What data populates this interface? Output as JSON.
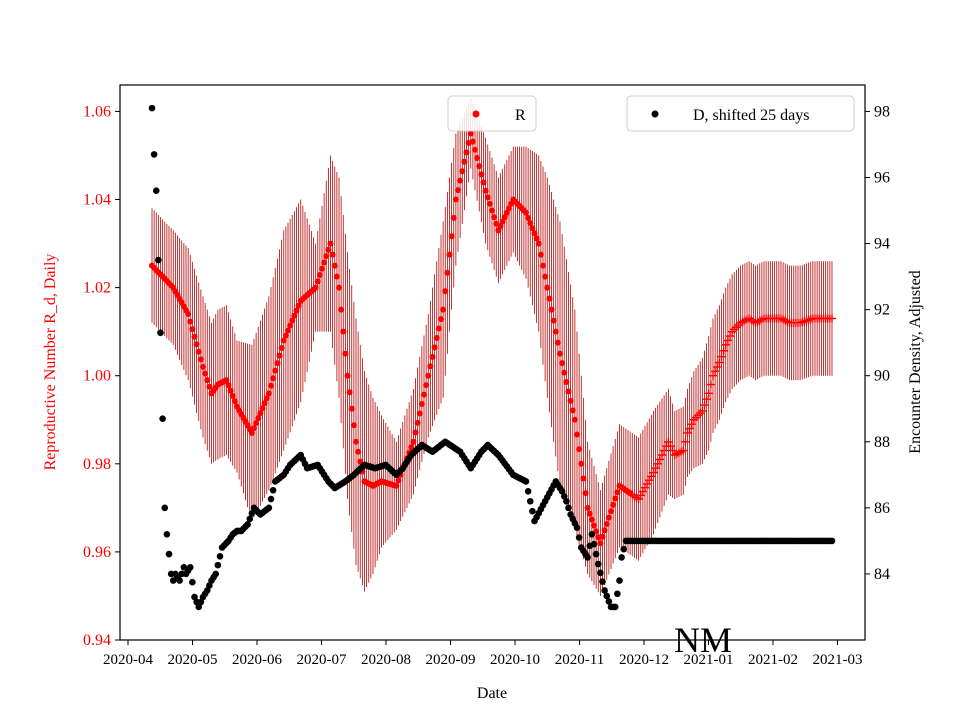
{
  "chart_data": {
    "type": "scatter",
    "xlabel": "Date",
    "ylabel_left": "Reproductive Number R_d, Daily",
    "ylabel_right": "Encounter Density, Adjusted",
    "annotation": "NM",
    "x_tick_labels": [
      "2020-04",
      "2020-05",
      "2020-06",
      "2020-07",
      "2020-08",
      "2020-09",
      "2020-10",
      "2020-11",
      "2020-12",
      "2021-01",
      "2021-02",
      "2021-03"
    ],
    "left_ylim": [
      0.94,
      1.066
    ],
    "left_ticks": [
      "0.94",
      "0.96",
      "0.98",
      "1.00",
      "1.02",
      "1.04",
      "1.06"
    ],
    "right_ylim": [
      82.0,
      98.8
    ],
    "right_ticks": [
      "84",
      "86",
      "88",
      "90",
      "92",
      "94",
      "96",
      "98"
    ],
    "colors": {
      "r_series": "#ff0000",
      "r_errorbar": "#b30000",
      "d_series": "#000000"
    },
    "legend": {
      "left": {
        "label": "R",
        "placement": "upper-center"
      },
      "right": {
        "label": "D, shifted 25 days",
        "placement": "upper-right"
      }
    },
    "r_series": {
      "name": "R",
      "marker_dot": "circle",
      "marker_late": "plus",
      "x_days": [
        0,
        10,
        17,
        24,
        28,
        31,
        35,
        40,
        47,
        55,
        62,
        70,
        77,
        84,
        88,
        92,
        96,
        100,
        104,
        108,
        115,
        123,
        130,
        137,
        143,
        150,
        157,
        163,
        170,
        176,
        182,
        186,
        192,
        199,
        205,
        211,
        220,
        229,
        236,
        243,
        246,
        250,
        252,
        255,
        259,
        262,
        264,
        267,
        270,
        273,
        277,
        281,
        284,
        288,
        292,
        296,
        300,
        305,
        311,
        316,
        320
      ],
      "values": [
        1.025,
        1.02,
        1.014,
        1.002,
        0.996,
        0.998,
        0.999,
        0.993,
        0.987,
        0.996,
        1.008,
        1.017,
        1.02,
        1.03,
        1.02,
        1.0,
        0.985,
        0.976,
        0.975,
        0.976,
        0.975,
        0.985,
        1.0,
        1.015,
        1.04,
        1.055,
        1.042,
        1.033,
        1.04,
        1.037,
        1.03,
        1.02,
        1.005,
        0.99,
        0.97,
        0.962,
        0.975,
        0.972,
        0.978,
        0.985,
        0.982,
        0.983,
        0.987,
        0.99,
        0.992,
        0.996,
        1.0,
        1.003,
        1.007,
        1.01,
        1.012,
        1.013,
        1.012,
        1.013,
        1.013,
        1.013,
        1.012,
        1.012,
        1.013,
        1.013,
        1.013
      ],
      "error": [
        0.013,
        0.013,
        0.015,
        0.016,
        0.016,
        0.017,
        0.017,
        0.015,
        0.02,
        0.022,
        0.025,
        0.023,
        0.01,
        0.02,
        0.025,
        0.028,
        0.028,
        0.025,
        0.02,
        0.015,
        0.01,
        0.012,
        0.014,
        0.02,
        0.015,
        0.008,
        0.012,
        0.012,
        0.012,
        0.015,
        0.02,
        0.025,
        0.03,
        0.025,
        0.015,
        0.012,
        0.014,
        0.014,
        0.014,
        0.012,
        0.01,
        0.01,
        0.01,
        0.011,
        0.012,
        0.013,
        0.013,
        0.013,
        0.013,
        0.013,
        0.013,
        0.013,
        0.013,
        0.013,
        0.013,
        0.013,
        0.013,
        0.013,
        0.013,
        0.013,
        0.013
      ],
      "plus_from_day": 226
    },
    "d_series": {
      "name": "D, shifted 25 days",
      "x_days": [
        0,
        1,
        2,
        3,
        4,
        5,
        6,
        7,
        8,
        9,
        10,
        11,
        13,
        15,
        16,
        18,
        20,
        22,
        24,
        26,
        28,
        30,
        33,
        36,
        38,
        40,
        42,
        45,
        48,
        51,
        55,
        58,
        62,
        65,
        70,
        73,
        78,
        83,
        86,
        91,
        95,
        100,
        105,
        110,
        115,
        118,
        122,
        127,
        132,
        138,
        145,
        150,
        155,
        158,
        163,
        170,
        176,
        180,
        185,
        190,
        193,
        195,
        197,
        200,
        202,
        205,
        207,
        210,
        213,
        216,
        218,
        220,
        221,
        223,
        225,
        226,
        228,
        230,
        233,
        238,
        245,
        255,
        265,
        275,
        285,
        295,
        305,
        315,
        320
      ],
      "values": [
        98.1,
        96.7,
        95.6,
        93.5,
        91.3,
        88.7,
        86.0,
        85.2,
        84.6,
        84.0,
        83.8,
        84.0,
        83.8,
        84.2,
        84.0,
        84.2,
        83.3,
        83.0,
        83.3,
        83.5,
        83.8,
        84.0,
        84.8,
        85.0,
        85.2,
        85.3,
        85.3,
        85.5,
        86.0,
        85.8,
        86.0,
        86.8,
        87.0,
        87.3,
        87.6,
        87.2,
        87.3,
        86.8,
        86.6,
        86.8,
        87.0,
        87.3,
        87.2,
        87.3,
        87.0,
        87.2,
        87.6,
        87.9,
        87.7,
        88.0,
        87.7,
        87.2,
        87.7,
        87.9,
        87.6,
        87.0,
        86.8,
        85.6,
        86.2,
        86.8,
        86.5,
        86.2,
        85.8,
        85.4,
        84.8,
        84.5,
        85.2,
        84.3,
        83.5,
        83.0,
        83.0,
        83.8,
        84.5,
        85.0,
        85.0,
        85.0,
        85.0,
        85.0,
        85.0,
        85.0,
        85.0,
        85.0,
        85.0,
        85.0,
        85.0,
        85.0,
        85.0,
        85.0,
        85.0
      ]
    }
  }
}
